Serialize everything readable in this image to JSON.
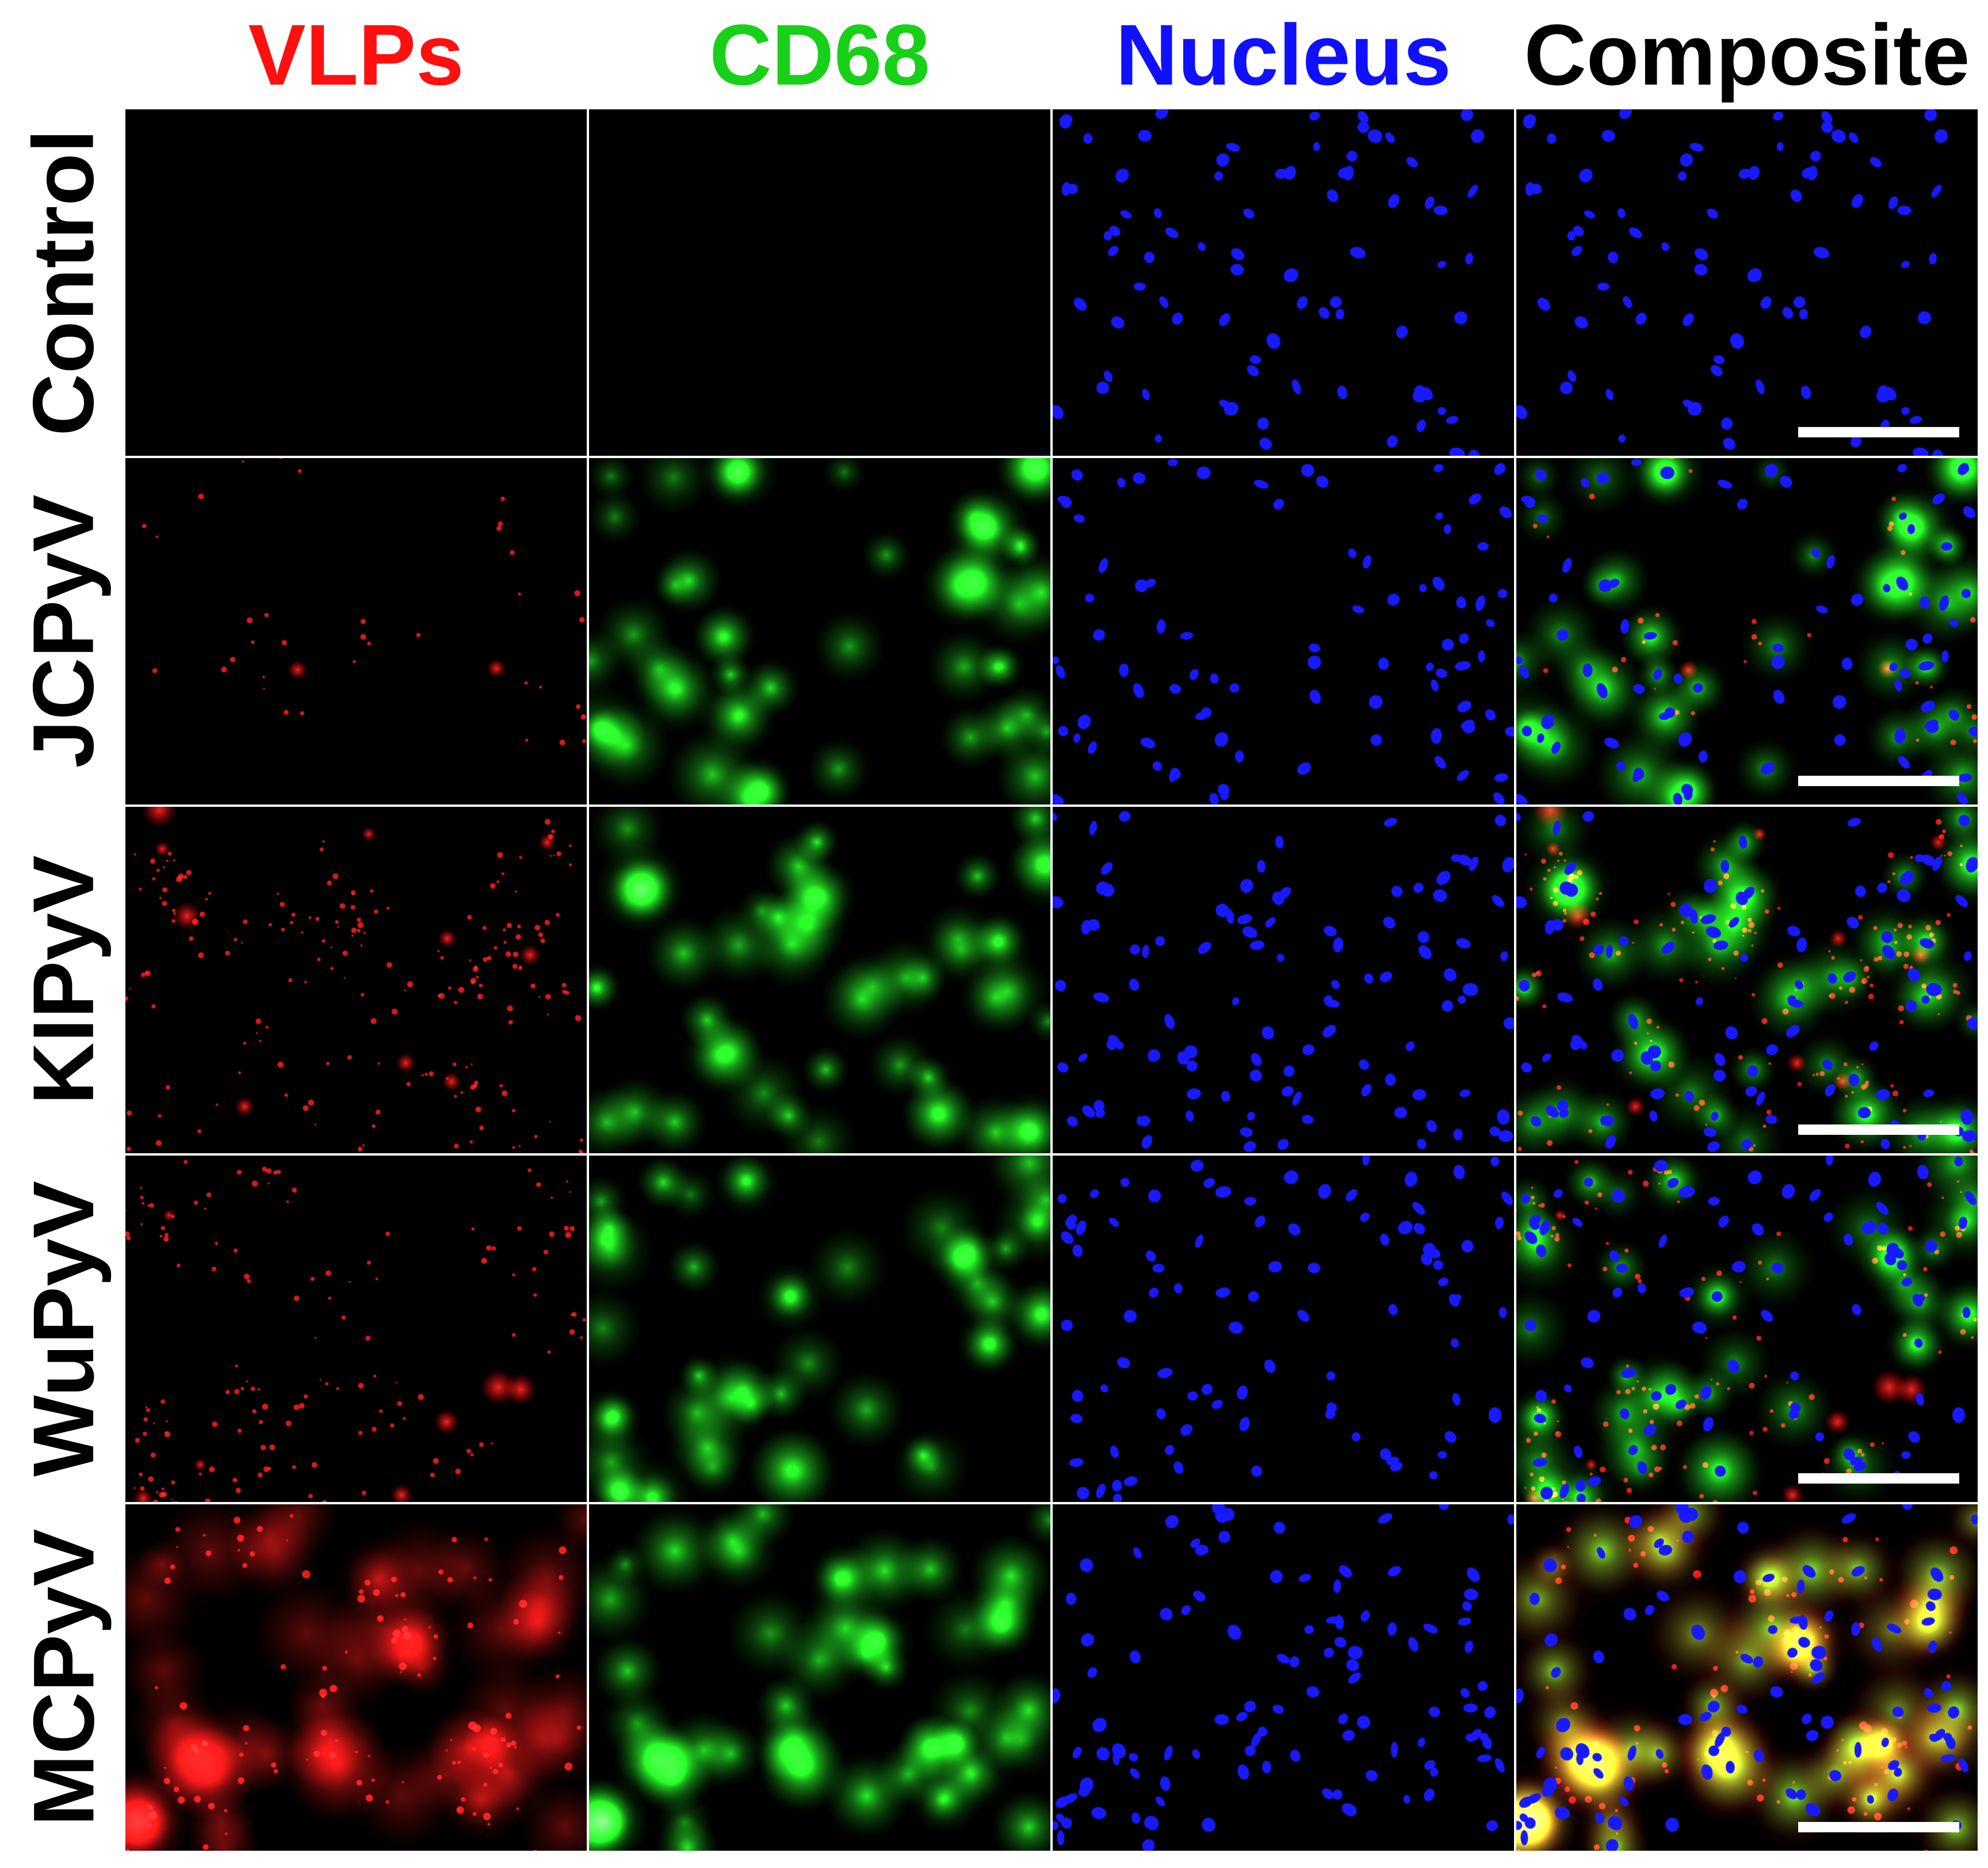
{
  "columns": [
    {
      "label": "VLPs",
      "color": "#ff1010",
      "channel": "red"
    },
    {
      "label": "CD68",
      "color": "#19d019",
      "channel": "green"
    },
    {
      "label": "Nucleus",
      "color": "#1010ff",
      "channel": "blue"
    },
    {
      "label": "Composite",
      "color": "#000000",
      "channel": "composite"
    }
  ],
  "rows": [
    {
      "label": "Control",
      "red": 0,
      "green": 0,
      "blue": 0.45,
      "diffuse_red": false
    },
    {
      "label": "JCPyV",
      "red": 0.15,
      "green": 0.75,
      "blue": 0.5,
      "diffuse_red": false
    },
    {
      "label": "KIPyV",
      "red": 0.8,
      "green": 0.7,
      "blue": 0.7,
      "diffuse_red": false
    },
    {
      "label": "WuPyV",
      "red": 0.6,
      "green": 0.7,
      "blue": 0.55,
      "diffuse_red": false
    },
    {
      "label": "MCPyV",
      "red": 0.5,
      "green": 0.9,
      "blue": 0.75,
      "diffuse_red": true
    }
  ],
  "panel_colors": {
    "background": "#000000",
    "scale_bar": "#ffffff"
  }
}
